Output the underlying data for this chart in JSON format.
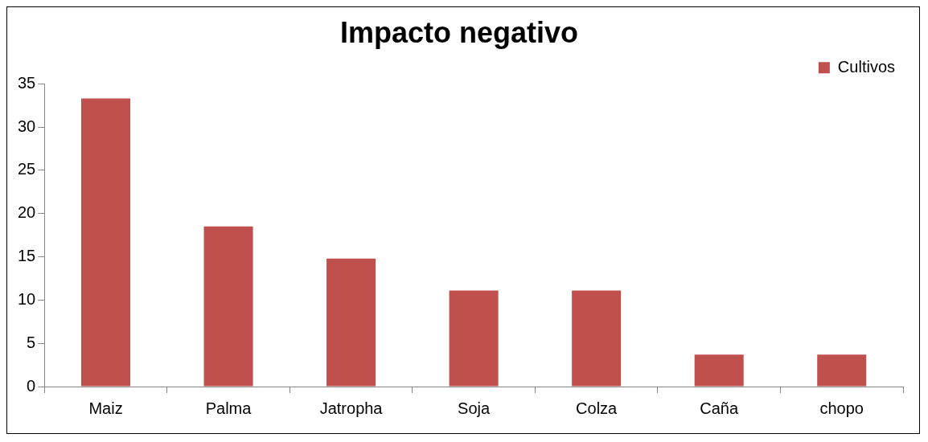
{
  "chart_data": {
    "type": "bar",
    "title": "Impacto negativo",
    "categories": [
      "Maiz",
      "Palma",
      "Jatropha",
      "Soja",
      "Colza",
      "Caña",
      "chopo"
    ],
    "series": [
      {
        "name": "Cultivos",
        "color": "#c0504d",
        "values": [
          33.3,
          18.5,
          14.8,
          11.1,
          11.1,
          3.7,
          3.7
        ]
      }
    ],
    "ylim": [
      0,
      35
    ],
    "yticks": [
      0,
      5,
      10,
      15,
      20,
      25,
      30,
      35
    ],
    "grid": false,
    "legend": "top right"
  }
}
